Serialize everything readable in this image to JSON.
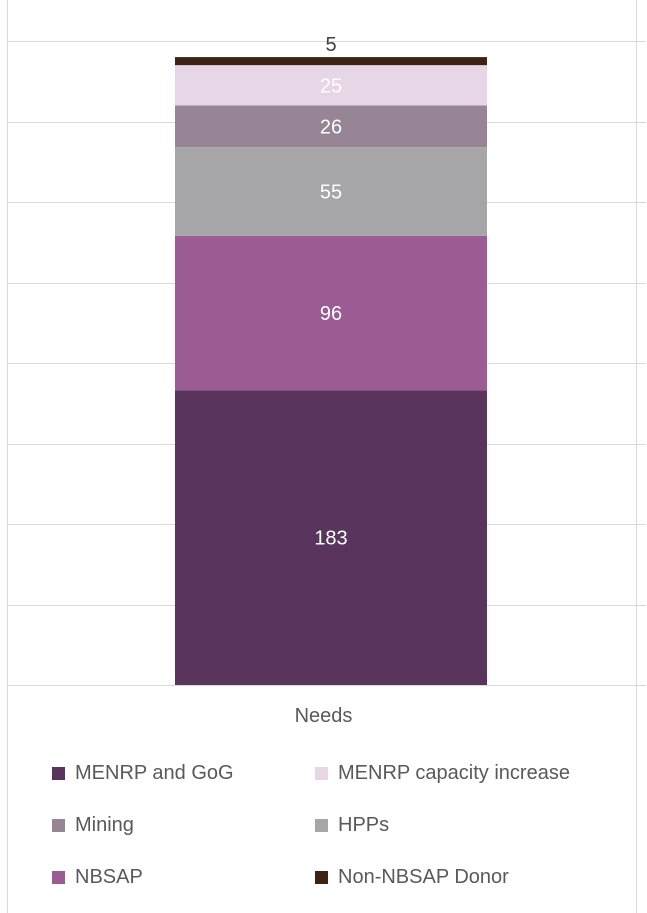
{
  "chart_data": {
    "type": "bar",
    "stacked": true,
    "categories": [
      "Needs"
    ],
    "series": [
      {
        "name": "MENRP and GoG",
        "values": [
          183
        ],
        "color": "#59355e"
      },
      {
        "name": "NBSAP",
        "values": [
          96
        ],
        "color": "#9b5c94"
      },
      {
        "name": "HPPs",
        "values": [
          55
        ],
        "color": "#a6a6a8"
      },
      {
        "name": "Mining",
        "values": [
          26
        ],
        "color": "#978494"
      },
      {
        "name": "MENRP capacity increase",
        "values": [
          25
        ],
        "color": "#e7d6e6"
      },
      {
        "name": "Non-NBSAP Donor",
        "values": [
          5
        ],
        "color": "#3c2314"
      }
    ],
    "ylim": [
      0,
      400
    ],
    "grid": true,
    "legend_position": "bottom"
  }
}
